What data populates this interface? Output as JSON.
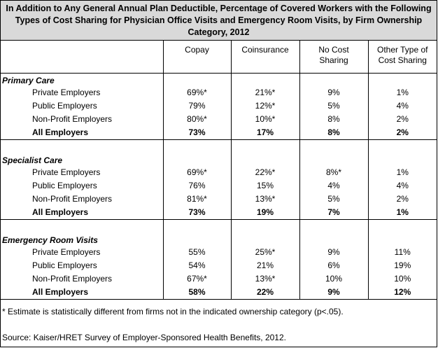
{
  "title": "In Addition to Any General Annual Plan Deductible, Percentage of Covered Workers with the Following Types of Cost Sharing for Physician Office Visits and Emergency Room Visits, by Firm Ownership Category, 2012",
  "columns": [
    "Copay",
    "Coinsurance",
    "No Cost Sharing",
    "Other Type of Cost Sharing"
  ],
  "sections": [
    {
      "name": "Primary Care",
      "rows": [
        {
          "label": "Private Employers",
          "values": [
            "69%*",
            "21%*",
            "9%",
            "1%"
          ]
        },
        {
          "label": "Public Employers",
          "values": [
            "79%",
            "12%*",
            "5%",
            "4%"
          ]
        },
        {
          "label": "Non-Profit Employers",
          "values": [
            "80%*",
            "10%*",
            "8%",
            "2%"
          ]
        },
        {
          "label": "All Employers",
          "values": [
            "73%",
            "17%",
            "8%",
            "2%"
          ]
        }
      ]
    },
    {
      "name": "Specialist Care",
      "rows": [
        {
          "label": "Private Employers",
          "values": [
            "69%*",
            "22%*",
            "8%*",
            "1%"
          ]
        },
        {
          "label": "Public Employers",
          "values": [
            "76%",
            "15%",
            "4%",
            "4%"
          ]
        },
        {
          "label": "Non-Profit Employers",
          "values": [
            "81%*",
            "13%*",
            "5%",
            "2%"
          ]
        },
        {
          "label": "All Employers",
          "values": [
            "73%",
            "19%",
            "7%",
            "1%"
          ]
        }
      ]
    },
    {
      "name": "Emergency Room Visits",
      "rows": [
        {
          "label": "Private Employers",
          "values": [
            "55%",
            "25%*",
            "9%",
            "11%"
          ]
        },
        {
          "label": "Public Employers",
          "values": [
            "54%",
            "21%",
            "6%",
            "19%"
          ]
        },
        {
          "label": "Non-Profit Employers",
          "values": [
            "67%*",
            "13%*",
            "10%",
            "10%"
          ]
        },
        {
          "label": "All Employers",
          "values": [
            "58%",
            "22%",
            "9%",
            "12%"
          ]
        }
      ]
    }
  ],
  "footnote": "* Estimate is statistically different from firms not in the indicated ownership category (p<.05).",
  "source": "Source: Kaiser/HRET Survey of Employer-Sponsored Health Benefits, 2012."
}
